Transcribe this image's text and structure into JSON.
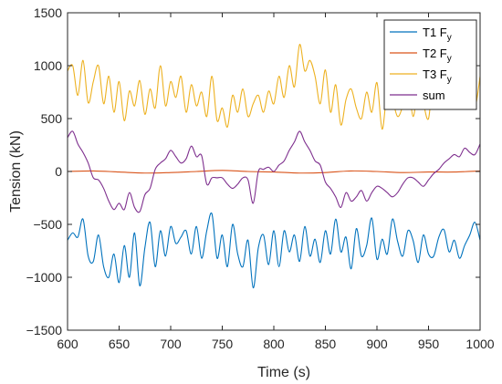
{
  "chart_data": {
    "type": "line",
    "xlabel": "Time (s)",
    "ylabel": "Tension (kN)",
    "xlim": [
      600,
      1000
    ],
    "ylim": [
      -1500,
      1500
    ],
    "xticks": [
      600,
      650,
      700,
      750,
      800,
      850,
      900,
      950,
      1000
    ],
    "yticks": [
      -1500,
      -1000,
      -500,
      0,
      500,
      1000,
      1500
    ],
    "grid": false,
    "legend_position": "top-right",
    "series": [
      {
        "name": "T1 F_y",
        "color": "#0072BD",
        "x": [
          600,
          605,
          610,
          615,
          620,
          625,
          630,
          635,
          640,
          645,
          650,
          655,
          660,
          665,
          670,
          675,
          680,
          685,
          690,
          695,
          700,
          705,
          710,
          715,
          720,
          725,
          730,
          735,
          740,
          745,
          750,
          755,
          760,
          765,
          770,
          775,
          780,
          785,
          790,
          795,
          800,
          805,
          810,
          815,
          820,
          825,
          830,
          835,
          840,
          845,
          850,
          855,
          860,
          865,
          870,
          875,
          880,
          885,
          890,
          895,
          900,
          905,
          910,
          915,
          920,
          925,
          930,
          935,
          940,
          945,
          950,
          955,
          960,
          965,
          970,
          975,
          980,
          985,
          990,
          995,
          1000
        ],
        "y": [
          -650,
          -580,
          -620,
          -450,
          -800,
          -850,
          -600,
          -900,
          -1000,
          -780,
          -1050,
          -700,
          -1000,
          -580,
          -1080,
          -720,
          -480,
          -900,
          -560,
          -800,
          -520,
          -680,
          -620,
          -560,
          -780,
          -520,
          -820,
          -560,
          -400,
          -820,
          -600,
          -900,
          -500,
          -780,
          -900,
          -650,
          -1100,
          -720,
          -600,
          -880,
          -560,
          -900,
          -560,
          -760,
          -600,
          -850,
          -520,
          -800,
          -640,
          -860,
          -560,
          -780,
          -450,
          -760,
          -620,
          -920,
          -540,
          -800,
          -700,
          -440,
          -830,
          -640,
          -780,
          -450,
          -660,
          -800,
          -560,
          -650,
          -860,
          -600,
          -780,
          -800,
          -620,
          -550,
          -760,
          -650,
          -820,
          -700,
          -600,
          -480,
          -650
        ]
      },
      {
        "name": "T2 F_y",
        "color": "#D95319",
        "x": [
          600,
          625,
          650,
          675,
          700,
          725,
          750,
          775,
          800,
          825,
          850,
          875,
          900,
          925,
          950,
          975,
          1000
        ],
        "y": [
          0,
          5,
          -5,
          -15,
          -10,
          0,
          10,
          0,
          -5,
          -15,
          -10,
          5,
          0,
          -10,
          -5,
          -5,
          5
        ]
      },
      {
        "name": "T3 F_y",
        "color": "#EDB120",
        "x": [
          600,
          605,
          610,
          615,
          620,
          625,
          630,
          635,
          640,
          645,
          650,
          655,
          660,
          665,
          670,
          675,
          680,
          685,
          690,
          695,
          700,
          705,
          710,
          715,
          720,
          725,
          730,
          735,
          740,
          745,
          750,
          755,
          760,
          765,
          770,
          775,
          780,
          785,
          790,
          795,
          800,
          805,
          810,
          815,
          820,
          825,
          830,
          835,
          840,
          845,
          850,
          855,
          860,
          865,
          870,
          875,
          880,
          885,
          890,
          895,
          900,
          905,
          910,
          915,
          920,
          925,
          930,
          935,
          940,
          945,
          950,
          955,
          960,
          965,
          970,
          975,
          980,
          985,
          990,
          995,
          1000
        ],
        "y": [
          950,
          1000,
          720,
          1050,
          650,
          850,
          1000,
          640,
          900,
          560,
          850,
          480,
          760,
          620,
          860,
          540,
          780,
          600,
          1000,
          620,
          850,
          700,
          900,
          560,
          820,
          620,
          750,
          520,
          900,
          480,
          600,
          420,
          720,
          560,
          780,
          520,
          640,
          720,
          560,
          760,
          640,
          900,
          700,
          1000,
          800,
          1200,
          950,
          1050,
          900,
          640,
          960,
          560,
          820,
          440,
          680,
          780,
          600,
          500,
          750,
          560,
          840,
          400,
          760,
          680,
          520,
          620,
          820,
          520,
          780,
          640,
          500,
          900,
          600,
          1050,
          750,
          880,
          640,
          900,
          760,
          600,
          900
        ]
      },
      {
        "name": "sum",
        "color": "#7E2F8E",
        "x": [
          600,
          605,
          610,
          615,
          620,
          625,
          630,
          635,
          640,
          645,
          650,
          655,
          660,
          665,
          670,
          675,
          680,
          685,
          690,
          695,
          700,
          705,
          710,
          715,
          720,
          725,
          730,
          735,
          740,
          745,
          750,
          755,
          760,
          765,
          770,
          775,
          780,
          785,
          790,
          795,
          800,
          805,
          810,
          815,
          820,
          825,
          830,
          835,
          840,
          845,
          850,
          855,
          860,
          865,
          870,
          875,
          880,
          885,
          890,
          895,
          900,
          905,
          910,
          915,
          920,
          925,
          930,
          935,
          940,
          945,
          950,
          955,
          960,
          965,
          970,
          975,
          980,
          985,
          990,
          995,
          1000
        ],
        "y": [
          320,
          380,
          260,
          180,
          80,
          -60,
          -80,
          -160,
          -280,
          -360,
          -300,
          -360,
          -200,
          -340,
          -380,
          -220,
          -160,
          20,
          80,
          120,
          200,
          140,
          80,
          120,
          240,
          140,
          150,
          -120,
          -60,
          -60,
          -60,
          -120,
          -160,
          -120,
          -60,
          -80,
          -300,
          0,
          20,
          40,
          0,
          60,
          100,
          200,
          280,
          380,
          280,
          200,
          100,
          60,
          -100,
          -160,
          -240,
          -340,
          -200,
          -280,
          -240,
          -180,
          -280,
          -200,
          -140,
          -160,
          -200,
          -240,
          -200,
          -120,
          -60,
          -60,
          -100,
          -140,
          -80,
          -20,
          20,
          80,
          120,
          160,
          140,
          220,
          180,
          160,
          260
        ]
      }
    ]
  },
  "legend": {
    "items": [
      {
        "label": "T1 F",
        "sub": "y",
        "color": "#0072BD"
      },
      {
        "label": "T2 F",
        "sub": "y",
        "color": "#D95319"
      },
      {
        "label": "T3 F",
        "sub": "y",
        "color": "#EDB120"
      },
      {
        "label": "sum",
        "sub": "",
        "color": "#7E2F8E"
      }
    ]
  }
}
